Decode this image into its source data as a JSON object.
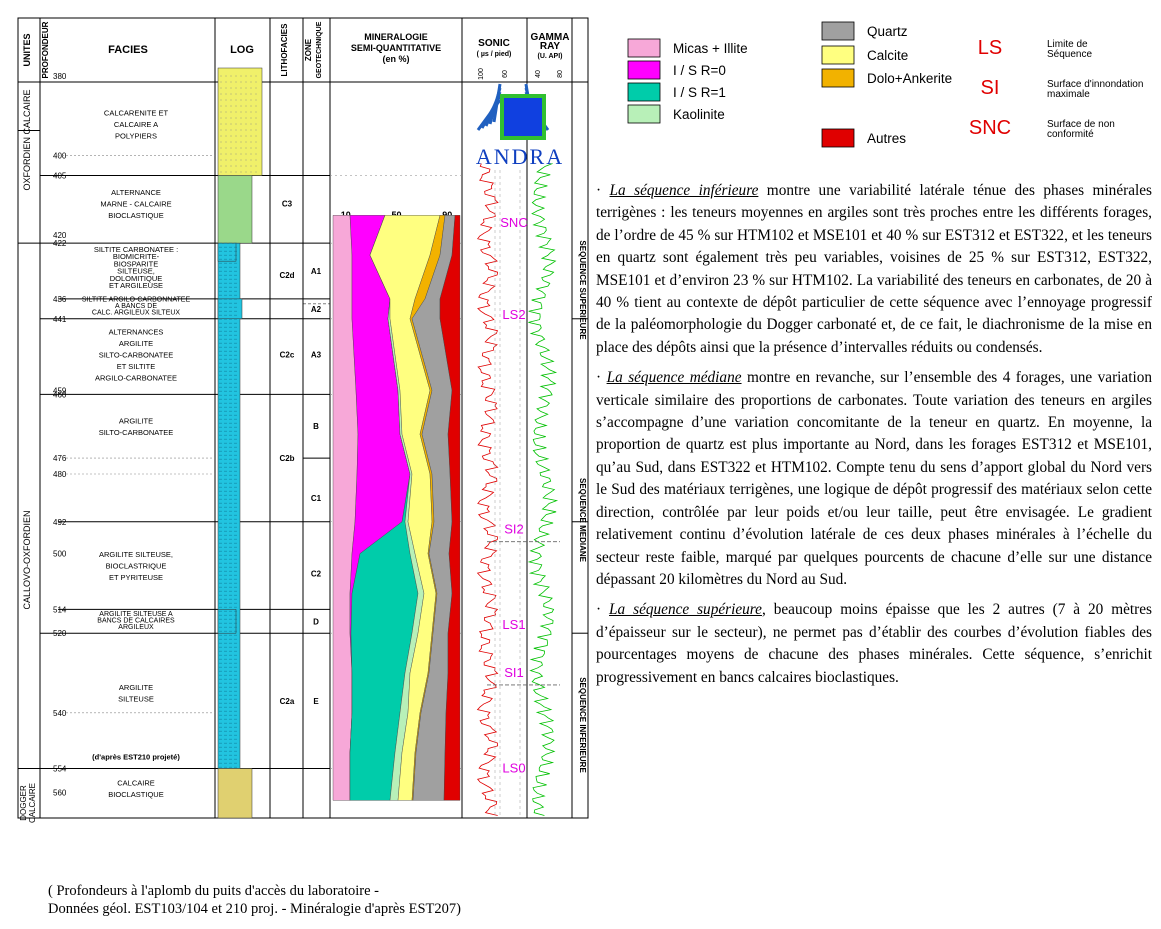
{
  "figure": {
    "headers": {
      "units": "UNITES",
      "depth": "PROFONDEUR",
      "facies": "FACIES",
      "log": "LOG",
      "lithofacies": "LITHOFACIES",
      "zone": [
        "ZONE",
        "GEOTECHNIQUE"
      ],
      "mineralogy": [
        "MINERALOGIE",
        "SEMI-QUANTITATIVE",
        "(en %)"
      ],
      "sonic": [
        "SONIC",
        "( µs / pied)"
      ],
      "gamma": [
        "GAMMA",
        "RAY",
        "(U. API)"
      ]
    },
    "sonic_ticks": [
      "100",
      "60"
    ],
    "gamma_ticks": [
      "40",
      "80"
    ],
    "units": [
      [
        "OXFORDIEN CALCAIRE"
      ],
      [
        "CALLOVO-OXFORDIEN"
      ],
      [
        "DOGGER",
        "CALCAIRE"
      ]
    ],
    "depths": [
      380,
      400,
      405,
      420,
      422,
      436,
      441,
      459,
      460,
      476,
      480,
      492,
      500,
      514,
      520,
      540,
      554,
      560
    ],
    "facies": [
      [
        "CALCARENITE ET",
        "CALCAIRE A",
        "POLYPIERS"
      ],
      [
        "ALTERNANCE",
        "MARNE - CALCAIRE",
        "BIOCLASTIQUE"
      ],
      [
        "SILTITE CARBONATEE :",
        "BIOMICRITE-",
        "BIOSPARITE",
        "SILTEUSE,",
        "DOLOMITIQUE",
        "ET ARGILEUSE"
      ],
      [
        "SILTITE ARGILO-CARBONNATEE",
        "A BANCS DE",
        "CALC. ARGILEUX SILTEUX"
      ],
      [
        "ALTERNANCES",
        "ARGILITE",
        "SILTO-CARBONATEE",
        "ET SILTITE",
        "ARGILO-CARBONATEE"
      ],
      [
        "ARGILITE",
        "SILTO-CARBONATEE"
      ],
      [
        "ARGILITE SILTEUSE,",
        "BIOCLASTRIQUE",
        "ET PYRITEUSE"
      ],
      [
        "ARGILITE SILTEUSE A",
        "BANCS DE CALCAIRES",
        "ARGILEUX"
      ],
      [
        "ARGILITE",
        "SILTEUSE"
      ],
      [
        "(d'après EST210 projeté)"
      ],
      [
        "CALCAIRE",
        "BIOCLASTIQUE"
      ]
    ],
    "lithofacies": [
      "C3",
      "C2d",
      "C2c",
      "C2b",
      "C2a"
    ],
    "zones": [
      "A1",
      "A2",
      "A3",
      "B",
      "C1",
      "C2",
      "D",
      "E"
    ],
    "mineralogy_ticks": [
      10,
      50,
      90
    ],
    "logo": "ANDRA",
    "markers": [
      "SNC",
      "LS2",
      "SI2",
      "LS1",
      "SI1",
      "LS0"
    ],
    "sequences": [
      "SEQUENCE SUPERIEURE",
      "SEQUENCE MEDIANE",
      "SEQUENCE INFERIEURE"
    ],
    "caption": [
      "( Profondeurs à l'aplomb du puits d'accès du laboratoire -",
      "Données géol. EST103/104 et 210 proj. -  Minéralogie d'après EST207)"
    ]
  },
  "legend": {
    "minerals": [
      {
        "name": "Micas + Illite",
        "color": "#f7a8d8"
      },
      {
        "name": "I / S  R=0",
        "color": "#ff00ff"
      },
      {
        "name": "I / S  R=1",
        "color": "#00ccaa"
      },
      {
        "name": "Kaolinite",
        "color": "#b8f0b8"
      },
      {
        "name": "Calcite",
        "color": "#ffff80"
      },
      {
        "name": "Dolo+Ankerite",
        "color": "#f2b200"
      },
      {
        "name": "Quartz",
        "color": "#a0a0a0"
      },
      {
        "name": "Autres",
        "color": "#e00000"
      }
    ],
    "surfaces": [
      {
        "code": "LS",
        "desc": [
          "Limite de",
          "Séquence"
        ]
      },
      {
        "code": "SI",
        "desc": [
          "Surface d'innondation",
          "maximale"
        ]
      },
      {
        "code": "SNC",
        "desc": [
          "Surface de non",
          "conformité"
        ]
      }
    ]
  },
  "paragraphs": [
    {
      "marker": "·",
      "lead": "La séquence inférieure",
      "text": " montre une variabilité latérale ténue des phases minérales terrigènes : les teneurs moyennes en argiles sont très proches entre les différents forages, de l’ordre de 45 % sur HTM102 et MSE101 et 40 % sur EST312 et EST322, et les teneurs en quartz sont également très peu variables, voisines de 25 % sur EST312, EST322, MSE101 et d’environ 23 % sur HTM102. La variabilité des teneurs en carbonates, de 20 à 40 % tient au contexte de dépôt particulier de cette séquence avec l’ennoyage progressif de la paléomorphologie du Dogger carbonaté et, de ce fait, le diachronisme de la mise en place des dépôts ainsi que la présence d’intervalles réduits ou condensés."
    },
    {
      "marker": "·",
      "lead": "La séquence médiane",
      "text": " montre en revanche, sur l’ensemble des 4 forages, une variation verticale similaire des proportions de carbonates. Toute variation des teneurs en argiles s’accompagne d’une variation concomitante de la teneur en quartz. En moyenne, la proportion de quartz est plus importante au Nord, dans les forages EST312 et MSE101, qu’au Sud, dans EST322 et HTM102. Compte tenu du sens d’apport global du Nord vers le Sud des matériaux terrigènes, une logique de dépôt progressif des matériaux selon cette direction, contrôlée par leur poids et/ou leur taille, peut être envisagée. Le gradient relativement continu d’évolution latérale de ces deux phases minérales à l’échelle du secteur reste faible, marqué par quelques pourcents de chacune d’elle sur une distance dépassant 20 kilomètres du Nord au Sud."
    },
    {
      "marker": "·",
      "lead": "La séquence supérieure",
      "text": ", beaucoup moins épaisse que les 2 autres (7 à 20 mètres d’épaisseur sur le secteur), ne permet pas d’établir des courbes d’évolution fiables des pourcentages moyens de chacune des phases minérales. Cette séquence, s’enrichit progressivement en bancs calcaires bioclastiques."
    }
  ]
}
